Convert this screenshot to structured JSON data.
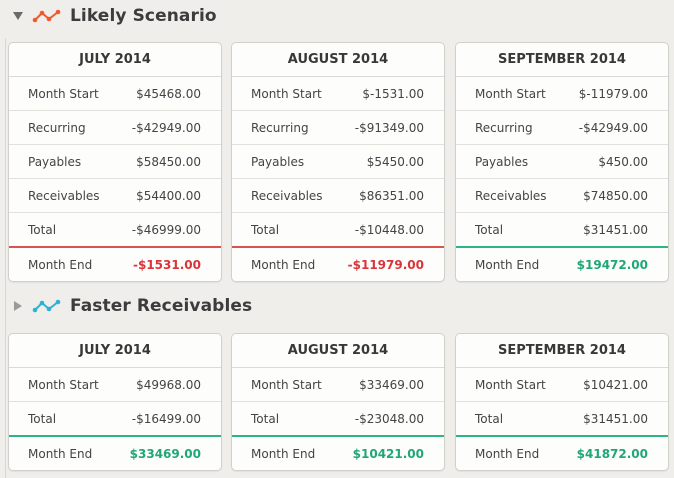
{
  "colors": {
    "negative": "#d9343a",
    "positive": "#1fa777",
    "likely_icon": "#f05a28",
    "faster_icon": "#2bb3d6"
  },
  "sections": [
    {
      "title": "Likely Scenario",
      "expanded": true,
      "icon": "orange-trend-line-icon",
      "months": [
        {
          "title": "JULY 2014",
          "rows": [
            {
              "label": "Month Start",
              "value": "$45468.00"
            },
            {
              "label": "Recurring",
              "value": "-$42949.00"
            },
            {
              "label": "Payables",
              "value": "$58450.00"
            },
            {
              "label": "Receivables",
              "value": "$54400.00"
            },
            {
              "label": "Total",
              "value": "-$46999.00"
            }
          ],
          "end": {
            "label": "Month End",
            "value": "-$1531.00",
            "status": "negative"
          }
        },
        {
          "title": "AUGUST 2014",
          "rows": [
            {
              "label": "Month Start",
              "value": "$-1531.00"
            },
            {
              "label": "Recurring",
              "value": "-$91349.00"
            },
            {
              "label": "Payables",
              "value": "$5450.00"
            },
            {
              "label": "Receivables",
              "value": "$86351.00"
            },
            {
              "label": "Total",
              "value": "-$10448.00"
            }
          ],
          "end": {
            "label": "Month End",
            "value": "-$11979.00",
            "status": "negative"
          }
        },
        {
          "title": "SEPTEMBER 2014",
          "rows": [
            {
              "label": "Month Start",
              "value": "$-11979.00"
            },
            {
              "label": "Recurring",
              "value": "-$42949.00"
            },
            {
              "label": "Payables",
              "value": "$450.00"
            },
            {
              "label": "Receivables",
              "value": "$74850.00"
            },
            {
              "label": "Total",
              "value": "$31451.00"
            }
          ],
          "end": {
            "label": "Month End",
            "value": "$19472.00",
            "status": "positive"
          }
        }
      ]
    },
    {
      "title": "Faster Receivables",
      "expanded": false,
      "icon": "blue-trend-line-icon",
      "months": [
        {
          "title": "JULY 2014",
          "rows": [
            {
              "label": "Month Start",
              "value": "$49968.00"
            },
            {
              "label": "Total",
              "value": "-$16499.00"
            }
          ],
          "end": {
            "label": "Month End",
            "value": "$33469.00",
            "status": "positive"
          }
        },
        {
          "title": "AUGUST 2014",
          "rows": [
            {
              "label": "Month Start",
              "value": "$33469.00"
            },
            {
              "label": "Total",
              "value": "-$23048.00"
            }
          ],
          "end": {
            "label": "Month End",
            "value": "$10421.00",
            "status": "positive"
          }
        },
        {
          "title": "SEPTEMBER 2014",
          "rows": [
            {
              "label": "Month Start",
              "value": "$10421.00"
            },
            {
              "label": "Total",
              "value": "$31451.00"
            }
          ],
          "end": {
            "label": "Month End",
            "value": "$41872.00",
            "status": "positive"
          }
        }
      ]
    }
  ]
}
